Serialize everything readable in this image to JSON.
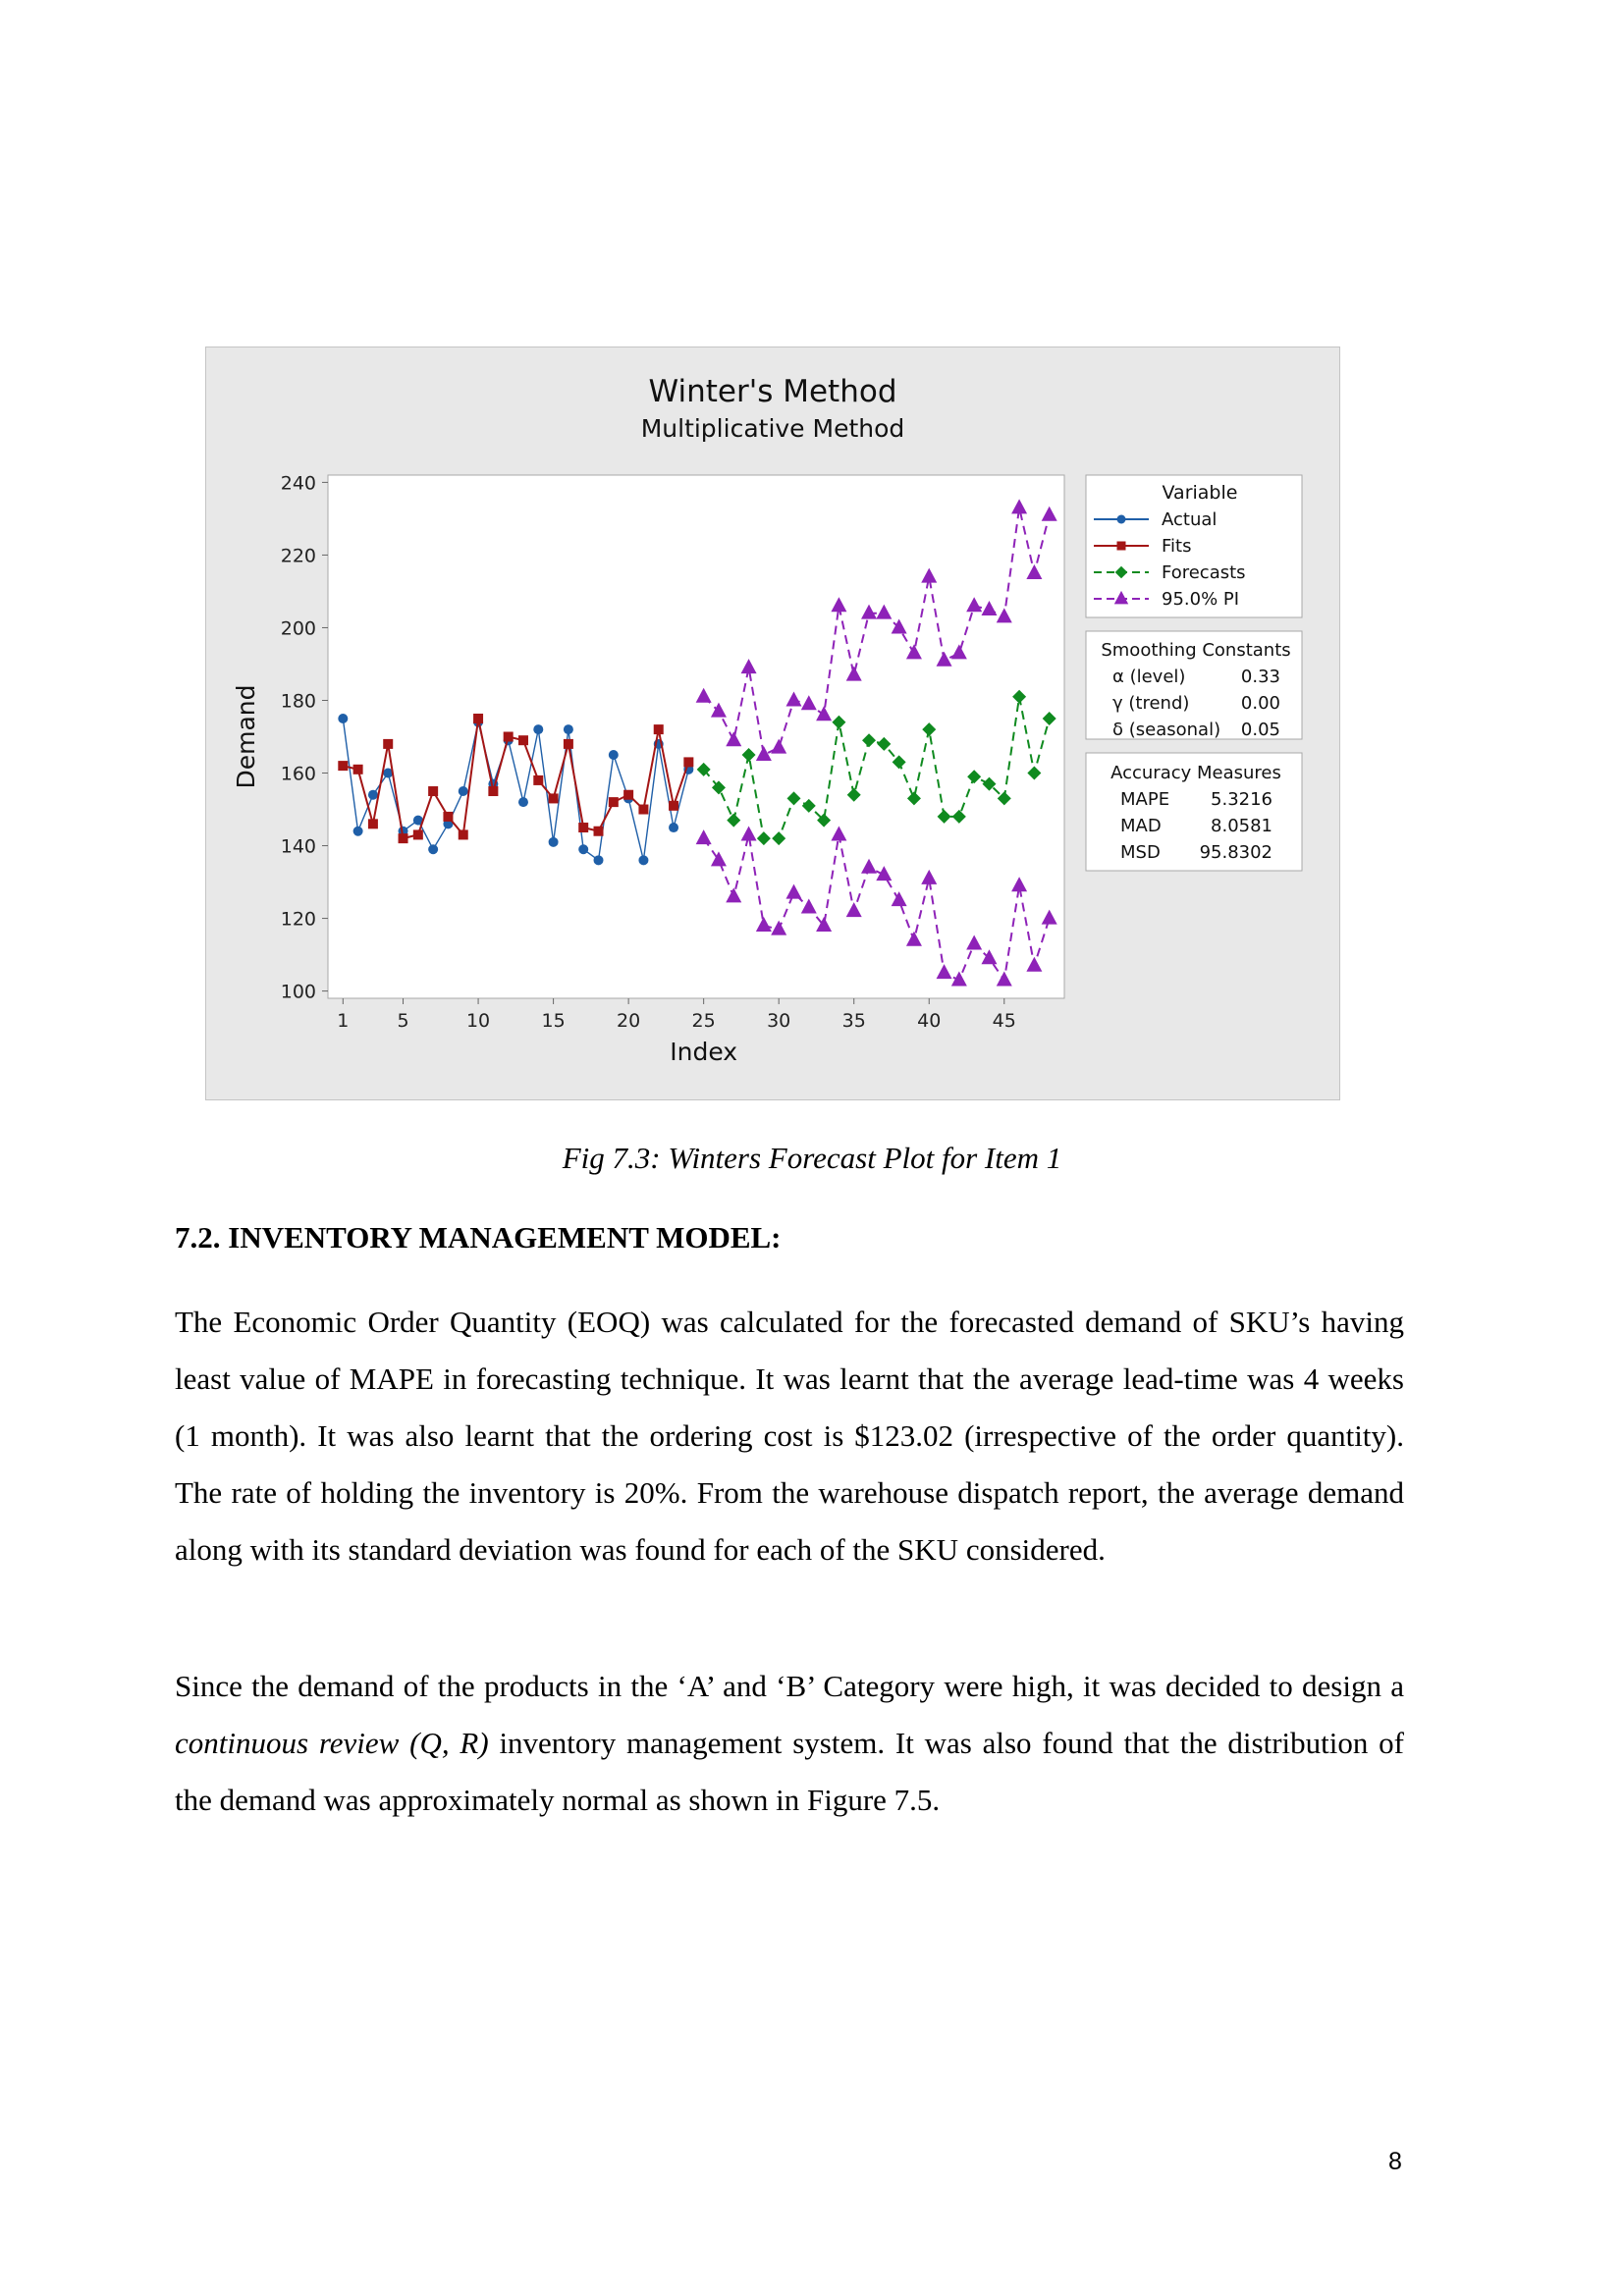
{
  "chart_data": {
    "type": "line",
    "title": "Winter's Method",
    "subtitle": "Multiplicative Method",
    "xlabel": "Index",
    "ylabel": "Demand",
    "xlim": [
      0,
      49
    ],
    "ylim": [
      98,
      242
    ],
    "xticks": [
      1,
      5,
      10,
      15,
      20,
      25,
      30,
      35,
      40,
      45
    ],
    "yticks": [
      100,
      120,
      140,
      160,
      180,
      200,
      220,
      240
    ],
    "legend_title": "Variable",
    "series": [
      {
        "name": "Actual",
        "color": "#1f5fa8",
        "marker": "circle",
        "line": "solid",
        "x": [
          1,
          2,
          3,
          4,
          5,
          6,
          7,
          8,
          9,
          10,
          11,
          12,
          13,
          14,
          15,
          16,
          17,
          18,
          19,
          20,
          21,
          22,
          23,
          24
        ],
        "y": [
          175,
          144,
          154,
          160,
          144,
          147,
          139,
          146,
          155,
          174,
          157,
          169,
          152,
          172,
          141,
          172,
          139,
          136,
          165,
          153,
          136,
          168,
          145,
          161
        ]
      },
      {
        "name": "Fits",
        "color": "#a31515",
        "marker": "square",
        "line": "solid",
        "x": [
          1,
          2,
          3,
          4,
          5,
          6,
          7,
          8,
          9,
          10,
          11,
          12,
          13,
          14,
          15,
          16,
          17,
          18,
          19,
          20,
          21,
          22,
          23,
          24
        ],
        "y": [
          162,
          161,
          146,
          168,
          142,
          143,
          155,
          148,
          143,
          175,
          155,
          170,
          169,
          158,
          153,
          168,
          145,
          144,
          152,
          154,
          150,
          172,
          151,
          163
        ]
      },
      {
        "name": "Forecasts",
        "color": "#0f8a1f",
        "marker": "diamond",
        "line": "dashed",
        "x": [
          25,
          26,
          27,
          28,
          29,
          30,
          31,
          32,
          33,
          34,
          35,
          36,
          37,
          38,
          39,
          40,
          41,
          42,
          43,
          44,
          45,
          46,
          47,
          48
        ],
        "y": [
          161,
          156,
          147,
          165,
          142,
          142,
          153,
          151,
          147,
          174,
          154,
          169,
          168,
          163,
          153,
          172,
          148,
          148,
          159,
          157,
          153,
          181,
          160,
          175
        ]
      },
      {
        "name": "95.0% PI",
        "color": "#8e22b8",
        "marker": "triangle",
        "line": "dashed",
        "x": [
          25,
          26,
          27,
          28,
          29,
          30,
          31,
          32,
          33,
          34,
          35,
          36,
          37,
          38,
          39,
          40,
          41,
          42,
          43,
          44,
          45,
          46,
          47,
          48
        ],
        "y": [
          181,
          177,
          169,
          189,
          165,
          167,
          180,
          179,
          176,
          206,
          187,
          204,
          204,
          200,
          193,
          214,
          191,
          193,
          206,
          205,
          203,
          233,
          215,
          231
        ]
      },
      {
        "name": "95.0% PI lower",
        "color": "#8e22b8",
        "marker": "triangle",
        "line": "dashed",
        "x": [
          25,
          26,
          27,
          28,
          29,
          30,
          31,
          32,
          33,
          34,
          35,
          36,
          37,
          38,
          39,
          40,
          41,
          42,
          43,
          44,
          45,
          46,
          47,
          48
        ],
        "y": [
          142,
          136,
          126,
          143,
          118,
          117,
          127,
          123,
          118,
          143,
          122,
          134,
          132,
          125,
          114,
          131,
          105,
          103,
          113,
          109,
          103,
          129,
          107,
          120
        ]
      }
    ],
    "smoothing": {
      "title": "Smoothing Constants",
      "rows": [
        {
          "label": "α (level)",
          "value": "0.33"
        },
        {
          "label": "γ (trend)",
          "value": "0.00"
        },
        {
          "label": "δ (seasonal)",
          "value": "0.05"
        }
      ]
    },
    "accuracy": {
      "title": "Accuracy Measures",
      "rows": [
        {
          "label": "MAPE",
          "value": "5.3216"
        },
        {
          "label": "MAD",
          "value": "8.0581"
        },
        {
          "label": "MSD",
          "value": "95.8302"
        }
      ]
    }
  },
  "caption": "Fig 7.3: Winters Forecast Plot for Item 1",
  "heading": "7.2. INVENTORY MANAGEMENT MODEL:",
  "paragraph1": "The Economic Order Quantity (EOQ) was calculated for the forecasted demand of SKU’s having least value of MAPE in forecasting technique. It was learnt that the average lead-time was 4 weeks (1 month). It was also learnt that the ordering cost is $123.02 (irrespective of the order quantity). The rate of holding the inventory is 20%. From the warehouse dispatch report, the average demand along with its standard deviation was found for each of the SKU considered.",
  "paragraph2": {
    "before": "Since the demand of the products in the ‘A’ and ‘B’ Category were high, it was decided to design a ",
    "emphasis": "continuous review (Q, R)",
    "after": " inventory management system. It was also found that the distribution of the demand was approximately normal as shown in Figure 7.5."
  },
  "page_number": "8"
}
